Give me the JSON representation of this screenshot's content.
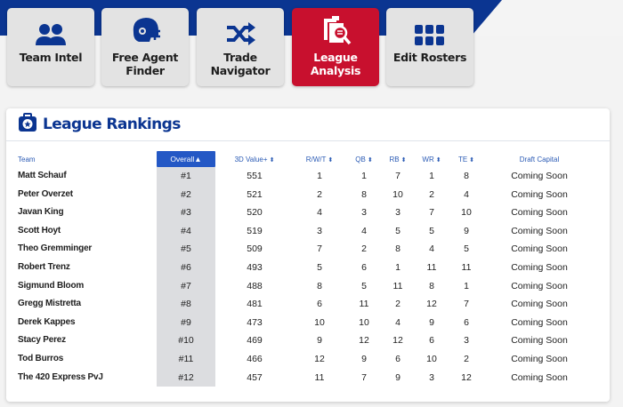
{
  "nav": {
    "tabs": [
      {
        "label": "Team Intel",
        "icon": "users-icon"
      },
      {
        "label": "Free Agent\nFinder",
        "icon": "football-helmet-icon"
      },
      {
        "label": "Trade Navigator",
        "icon": "shuffle-icon"
      },
      {
        "label": "League Analysis",
        "icon": "document-search-icon",
        "active": true
      },
      {
        "label": "Edit Rosters",
        "icon": "grid-icon"
      }
    ]
  },
  "rankings": {
    "title": "League Rankings",
    "icon": "briefcase-star-icon",
    "columns": {
      "team": "Team",
      "overall": "Overall",
      "value": "3D Value+",
      "rwt": "R/W/T",
      "qb": "QB",
      "rb": "RB",
      "wr": "WR",
      "te": "TE",
      "draft": "Draft Capital"
    },
    "rows": [
      {
        "team": "Matt Schauf",
        "overall": "#1",
        "value": "551",
        "rwt": "1",
        "qb": "1",
        "rb": "7",
        "wr": "1",
        "te": "8",
        "draft": "Coming Soon"
      },
      {
        "team": "Peter Overzet",
        "overall": "#2",
        "value": "521",
        "rwt": "2",
        "qb": "8",
        "rb": "10",
        "wr": "2",
        "te": "4",
        "draft": "Coming Soon"
      },
      {
        "team": "Javan King",
        "overall": "#3",
        "value": "520",
        "rwt": "4",
        "qb": "3",
        "rb": "3",
        "wr": "7",
        "te": "10",
        "draft": "Coming Soon"
      },
      {
        "team": "Scott Hoyt",
        "overall": "#4",
        "value": "519",
        "rwt": "3",
        "qb": "4",
        "rb": "5",
        "wr": "5",
        "te": "9",
        "draft": "Coming Soon"
      },
      {
        "team": "Theo Gremminger",
        "overall": "#5",
        "value": "509",
        "rwt": "7",
        "qb": "2",
        "rb": "8",
        "wr": "4",
        "te": "5",
        "draft": "Coming Soon"
      },
      {
        "team": "Robert Trenz",
        "overall": "#6",
        "value": "493",
        "rwt": "5",
        "qb": "6",
        "rb": "1",
        "wr": "11",
        "te": "11",
        "draft": "Coming Soon"
      },
      {
        "team": "Sigmund Bloom",
        "overall": "#7",
        "value": "488",
        "rwt": "8",
        "qb": "5",
        "rb": "11",
        "wr": "8",
        "te": "1",
        "draft": "Coming Soon"
      },
      {
        "team": "Gregg Mistretta",
        "overall": "#8",
        "value": "481",
        "rwt": "6",
        "qb": "11",
        "rb": "2",
        "wr": "12",
        "te": "7",
        "draft": "Coming Soon"
      },
      {
        "team": "Derek Kappes",
        "overall": "#9",
        "value": "473",
        "rwt": "10",
        "qb": "10",
        "rb": "4",
        "wr": "9",
        "te": "6",
        "draft": "Coming Soon"
      },
      {
        "team": "Stacy Perez",
        "overall": "#10",
        "value": "469",
        "rwt": "9",
        "qb": "12",
        "rb": "12",
        "wr": "6",
        "te": "3",
        "draft": "Coming Soon"
      },
      {
        "team": "Tod Burros",
        "overall": "#11",
        "value": "466",
        "rwt": "12",
        "qb": "9",
        "rb": "6",
        "wr": "10",
        "te": "2",
        "draft": "Coming Soon"
      },
      {
        "team": "The 420 Express PvJ",
        "overall": "#12",
        "value": "457",
        "rwt": "11",
        "qb": "7",
        "rb": "9",
        "wr": "3",
        "te": "12",
        "draft": "Coming Soon"
      }
    ]
  },
  "colors": {
    "brand_blue": "#0b3591",
    "active_red": "#c8102e",
    "link_blue": "#2b5bb5",
    "sorted_blue": "#2458c5"
  }
}
